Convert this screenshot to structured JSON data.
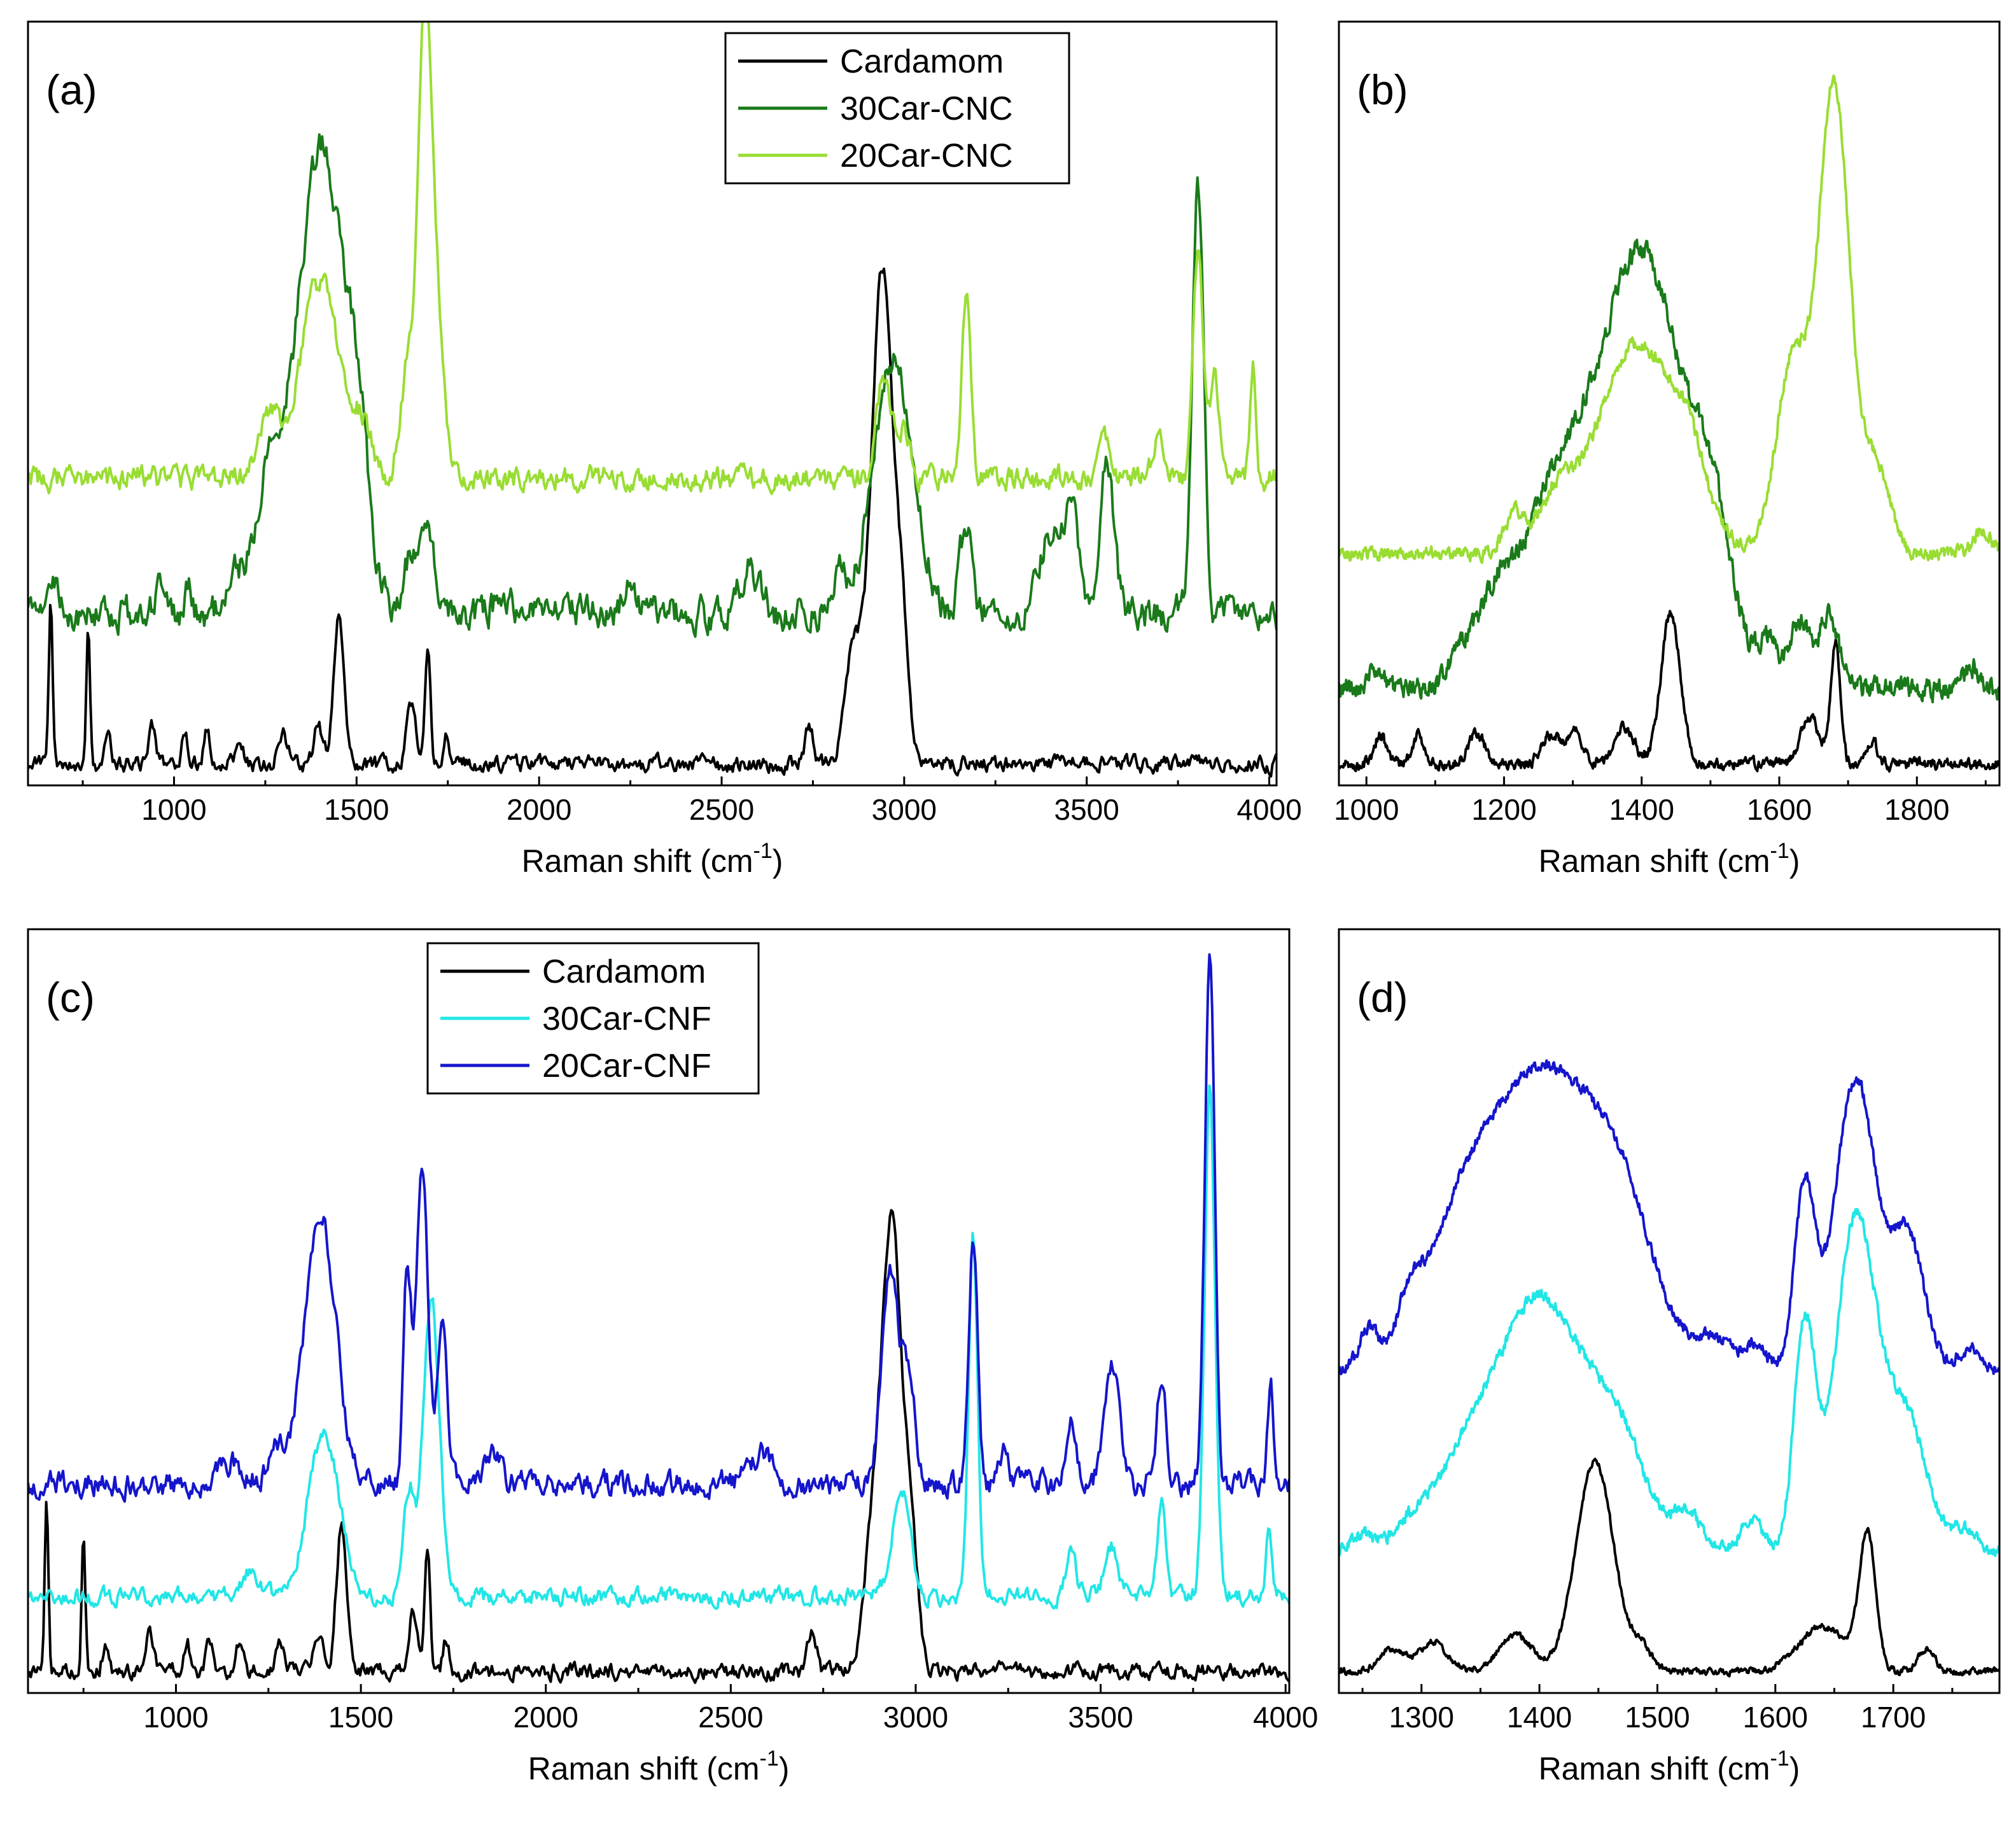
{
  "figure": {
    "colors": {
      "Cardamom": "#000000",
      "30Car-CNC": "#1a7a1a",
      "20Car-CNC": "#99dd33",
      "30Car-CNF": "#22e6e6",
      "20Car-CNF": "#1515cc"
    }
  },
  "chart_data": [
    {
      "id": "a",
      "panel_label": "(a)",
      "type": "line",
      "xlabel_main": "Raman shift (cm",
      "xlabel_sup": "-1",
      "xlabel_close": ")",
      "xlim": [
        600,
        4020
      ],
      "ylim": [
        0,
        100
      ],
      "xticks": [
        1000,
        1500,
        2000,
        2500,
        3000,
        3500,
        4000
      ],
      "xtick_labels": [
        "1000",
        "1500",
        "2000",
        "2500",
        "3000",
        "3500",
        "4000"
      ],
      "legend": [
        "Cardamom",
        "30Car-CNC",
        "20Car-CNC"
      ],
      "legend_position": "top-center",
      "series": [
        {
          "name": "Cardamom",
          "offset": 2,
          "noise": 1.2,
          "peaks": [
            [
              662,
              22,
              5
            ],
            [
              765,
              18,
              5
            ],
            [
              820,
              4,
              8
            ],
            [
              940,
              5,
              10
            ],
            [
              1030,
              4,
              8
            ],
            [
              1090,
              4,
              8
            ],
            [
              1180,
              4,
              10
            ],
            [
              1300,
              4,
              12
            ],
            [
              1395,
              5,
              12
            ],
            [
              1452,
              20,
              14
            ],
            [
              1650,
              8,
              12
            ],
            [
              1695,
              16,
              7
            ],
            [
              1745,
              4,
              8
            ],
            [
              2740,
              5,
              12
            ],
            [
              2860,
              15,
              22
            ],
            [
              2940,
              66,
              30
            ],
            [
              2995,
              14,
              18
            ]
          ]
        },
        {
          "name": "30Car-CNC",
          "offset": 22,
          "noise": 2.5,
          "peaks": [
            [
              680,
              4,
              12
            ],
            [
              960,
              4,
              12
            ],
            [
              1040,
              3,
              12
            ],
            [
              1160,
              5,
              20
            ],
            [
              1260,
              16,
              45
            ],
            [
              1405,
              62,
              65
            ],
            [
              1505,
              15,
              28
            ],
            [
              1650,
              8,
              22
            ],
            [
              1700,
              10,
              18
            ],
            [
              1900,
              3,
              20
            ],
            [
              2250,
              5,
              18
            ],
            [
              2580,
              6,
              28
            ],
            [
              2820,
              6,
              18
            ],
            [
              2970,
              34,
              55
            ],
            [
              3170,
              12,
              16
            ],
            [
              3400,
              10,
              30
            ],
            [
              3460,
              14,
              20
            ],
            [
              3555,
              20,
              20
            ],
            [
              3805,
              57,
              15
            ]
          ]
        },
        {
          "name": "20Car-CNC",
          "offset": 40,
          "noise": 1.8,
          "peaks": [
            [
              1260,
              8,
              30
            ],
            [
              1400,
              26,
              55
            ],
            [
              1520,
              6,
              25
            ],
            [
              1640,
              14,
              20
            ],
            [
              1690,
              65,
              20
            ],
            [
              1730,
              12,
              16
            ],
            [
              2945,
              14,
              20
            ],
            [
              3000,
              6,
              16
            ],
            [
              3170,
              25,
              12
            ],
            [
              3550,
              6,
              18
            ],
            [
              3700,
              5,
              18
            ],
            [
              3805,
              30,
              14
            ],
            [
              3850,
              14,
              12
            ],
            [
              3955,
              15,
              8
            ]
          ]
        }
      ]
    },
    {
      "id": "b",
      "panel_label": "(b)",
      "type": "line",
      "xlabel_main": "Raman shift (cm",
      "xlabel_sup": "-1",
      "xlabel_close": ")",
      "xlim": [
        960,
        1920
      ],
      "ylim": [
        0,
        100
      ],
      "xticks": [
        1000,
        1200,
        1400,
        1600,
        1800
      ],
      "xtick_labels": [
        "1000",
        "1200",
        "1400",
        "1600",
        "1800"
      ],
      "series": [
        {
          "name": "Cardamom",
          "offset": 2,
          "noise": 0.8,
          "peaks": [
            [
              1020,
              4,
              8
            ],
            [
              1075,
              4,
              8
            ],
            [
              1160,
              4,
              12
            ],
            [
              1270,
              4,
              14
            ],
            [
              1305,
              4,
              10
            ],
            [
              1375,
              5,
              14
            ],
            [
              1442,
              20,
              14
            ],
            [
              1645,
              6,
              14
            ],
            [
              1682,
              16,
              7
            ],
            [
              1735,
              3,
              8
            ]
          ]
        },
        {
          "name": "30Car-CNC",
          "offset": 12,
          "noise": 1.5,
          "peaks": [
            [
              1015,
              3,
              10
            ],
            [
              1140,
              5,
              18
            ],
            [
              1185,
              8,
              22
            ],
            [
              1265,
              22,
              50
            ],
            [
              1400,
              58,
              65
            ],
            [
              1505,
              14,
              28
            ],
            [
              1585,
              6,
              14
            ],
            [
              1630,
              9,
              14
            ],
            [
              1672,
              10,
              14
            ],
            [
              1880,
              3,
              12
            ]
          ]
        },
        {
          "name": "20Car-CNC",
          "offset": 30,
          "noise": 1.0,
          "peaks": [
            [
              1215,
              5,
              14
            ],
            [
              1275,
              6,
              25
            ],
            [
              1395,
              28,
              60
            ],
            [
              1470,
              6,
              22
            ],
            [
              1620,
              26,
              24
            ],
            [
              1680,
              62,
              22
            ],
            [
              1740,
              12,
              20
            ],
            [
              1895,
              3,
              14
            ]
          ]
        }
      ]
    },
    {
      "id": "c",
      "panel_label": "(c)",
      "type": "line",
      "xlabel_main": "Raman shift (cm",
      "xlabel_sup": "-1",
      "xlabel_close": ")",
      "xlim": [
        600,
        4010
      ],
      "ylim": [
        0,
        100
      ],
      "xticks": [
        1000,
        1500,
        2000,
        2500,
        3000,
        3500,
        4000
      ],
      "xtick_labels": [
        "1000",
        "1500",
        "2000",
        "2500",
        "3000",
        "3500",
        "4000"
      ],
      "legend": [
        "Cardamom",
        "30Car-CNF",
        "20Car-CNF"
      ],
      "legend_position": "top-center",
      "series": [
        {
          "name": "Cardamom",
          "offset": 2,
          "noise": 1.2,
          "peaks": [
            [
              650,
              22,
              5
            ],
            [
              750,
              18,
              5
            ],
            [
              810,
              4,
              8
            ],
            [
              930,
              5,
              10
            ],
            [
              1030,
              4,
              8
            ],
            [
              1090,
              4,
              8
            ],
            [
              1170,
              4,
              10
            ],
            [
              1280,
              4,
              12
            ],
            [
              1385,
              5,
              12
            ],
            [
              1448,
              20,
              14
            ],
            [
              1640,
              8,
              12
            ],
            [
              1680,
              16,
              7
            ],
            [
              1730,
              4,
              8
            ],
            [
              2720,
              5,
              12
            ],
            [
              2880,
              14,
              22
            ],
            [
              2935,
              60,
              28
            ],
            [
              2990,
              14,
              18
            ]
          ]
        },
        {
          "name": "30Car-CNF",
          "offset": 12,
          "noise": 1.3,
          "peaks": [
            [
              1200,
              3,
              30
            ],
            [
              1400,
              22,
              42
            ],
            [
              1630,
              14,
              14
            ],
            [
              1690,
              40,
              22
            ],
            [
              2945,
              8,
              20
            ],
            [
              2975,
              10,
              18
            ],
            [
              3155,
              48,
              12
            ],
            [
              3420,
              6,
              14
            ],
            [
              3530,
              7,
              18
            ],
            [
              3665,
              12,
              12
            ],
            [
              3795,
              68,
              14
            ],
            [
              3955,
              10,
              8
            ]
          ]
        },
        {
          "name": "20Car-CNF",
          "offset": 27,
          "noise": 1.8,
          "peaks": [
            [
              1150,
              3,
              30
            ],
            [
              1270,
              5,
              20
            ],
            [
              1390,
              36,
              42
            ],
            [
              1625,
              28,
              10
            ],
            [
              1665,
              43,
              16
            ],
            [
              1720,
              20,
              14
            ],
            [
              1860,
              4,
              20
            ],
            [
              2580,
              4,
              30
            ],
            [
              2930,
              28,
              22
            ],
            [
              2980,
              14,
              18
            ],
            [
              3155,
              33,
              12
            ],
            [
              3240,
              4,
              12
            ],
            [
              3420,
              8,
              14
            ],
            [
              3530,
              16,
              20
            ],
            [
              3665,
              14,
              12
            ],
            [
              3795,
              72,
              13
            ],
            [
              3960,
              13,
              8
            ]
          ]
        }
      ]
    },
    {
      "id": "d",
      "panel_label": "(d)",
      "type": "line",
      "xlabel_main": "Raman shift (cm",
      "xlabel_sup": "-1",
      "xlabel_close": ")",
      "xlim": [
        1230,
        1790
      ],
      "ylim": [
        0,
        100
      ],
      "xticks": [
        1300,
        1400,
        1500,
        1600,
        1700
      ],
      "xtick_labels": [
        "1300",
        "1400",
        "1500",
        "1600",
        "1700"
      ],
      "series": [
        {
          "name": "Cardamom",
          "offset": 2,
          "noise": 0.5,
          "peaks": [
            [
              1275,
              3,
              10
            ],
            [
              1310,
              4,
              12
            ],
            [
              1380,
              5,
              14
            ],
            [
              1447,
              28,
              16
            ],
            [
              1487,
              3,
              8
            ],
            [
              1640,
              6,
              20
            ],
            [
              1678,
              18,
              7
            ],
            [
              1728,
              3,
              7
            ]
          ]
        },
        {
          "name": "30Car-CNF",
          "offset": 18,
          "noise": 0.9,
          "peaks": [
            [
              1250,
              2,
              10
            ],
            [
              1290,
              3,
              15
            ],
            [
              1330,
              6,
              22
            ],
            [
              1400,
              34,
              42
            ],
            [
              1470,
              10,
              22
            ],
            [
              1525,
              5,
              12
            ],
            [
              1580,
              4,
              10
            ],
            [
              1625,
              30,
              9
            ],
            [
              1668,
              44,
              17
            ],
            [
              1710,
              18,
              18
            ],
            [
              1760,
              3,
              10
            ]
          ]
        },
        {
          "name": "20Car-CNF",
          "offset": 42,
          "noise": 0.9,
          "peaks": [
            [
              1255,
              5,
              8
            ],
            [
              1290,
              6,
              12
            ],
            [
              1330,
              10,
              25
            ],
            [
              1400,
              40,
              50
            ],
            [
              1470,
              14,
              28
            ],
            [
              1550,
              4,
              18
            ],
            [
              1585,
              3,
              8
            ],
            [
              1625,
              24,
              9
            ],
            [
              1668,
              39,
              17
            ],
            [
              1712,
              18,
              14
            ],
            [
              1765,
              3,
              10
            ]
          ]
        }
      ]
    }
  ]
}
